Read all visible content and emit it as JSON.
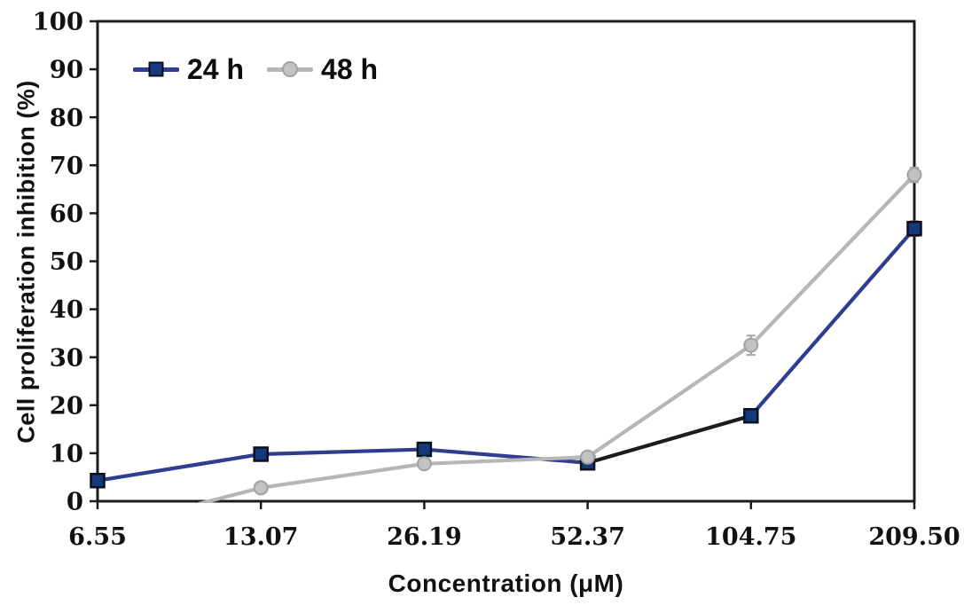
{
  "chart_data": {
    "type": "line",
    "title": "",
    "xlabel": "Concentration (μM)",
    "ylabel": "Cell proliferation inhibition (%)",
    "categories": [
      "6.55",
      "13.07",
      "26.19",
      "52.37",
      "104.75",
      "209.50"
    ],
    "ylim": [
      0,
      100
    ],
    "ytick_step": 10,
    "grid": false,
    "plot_border": "full-box",
    "legend_position": "top-left-inside",
    "background_color": "#ffffff",
    "axis_color": "#1c1c1c",
    "text_color": "#111111",
    "series": [
      {
        "name": "24 h",
        "values": [
          4.3,
          9.8,
          10.8,
          8.0,
          17.8,
          56.8
        ],
        "errors": [
          0,
          0,
          0,
          0,
          0,
          1.5
        ],
        "marker": "square",
        "color": "#2e3d8f",
        "marker_fill": "#153a7a",
        "marker_edge": "#0b1020",
        "error_color": "#8b4040",
        "segment_color_overrides": {
          "3": "#1c1c1c"
        }
      },
      {
        "name": "48 h",
        "values": [
          -6.0,
          2.8,
          7.8,
          9.2,
          32.5,
          68.0
        ],
        "errors": [
          0,
          0,
          0,
          0,
          2.0,
          1.5
        ],
        "marker": "circle",
        "color": "#b6b6b6",
        "marker_fill": "#c2c2c2",
        "marker_edge": "#a2a2a2",
        "error_color": "#ababab",
        "clipped_below_baseline": true
      }
    ]
  }
}
